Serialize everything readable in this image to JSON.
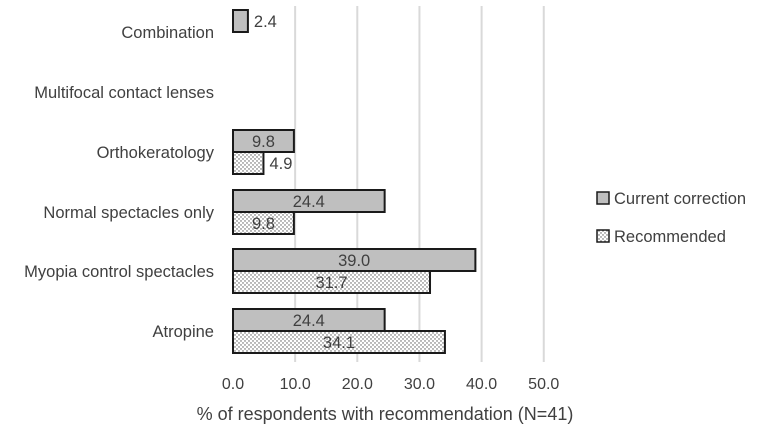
{
  "chart_data": {
    "type": "bar",
    "orientation": "horizontal",
    "categories": [
      "Combination",
      "Multifocal contact lenses",
      "Orthokeratology",
      "Normal spectacles only",
      "Myopia control spectacles",
      "Atropine"
    ],
    "series": [
      {
        "name": "Current correction",
        "values": [
          2.4,
          null,
          9.8,
          24.4,
          39.0,
          24.4
        ],
        "labels": [
          "2.4",
          "",
          "9.8",
          "24.4",
          "39.0",
          "24.4"
        ],
        "fill": "#bfbfbf"
      },
      {
        "name": "Recommended",
        "values": [
          null,
          null,
          4.9,
          9.8,
          31.7,
          34.1
        ],
        "labels": [
          "",
          "",
          "4.9",
          "9.8",
          "31.7",
          "34.1"
        ],
        "fill": "dotted"
      }
    ],
    "xlabel": "% of respondents with recommendation (N=41)",
    "ylabel": "",
    "xlim": [
      0,
      50
    ],
    "ticks": [
      0,
      10,
      20,
      30,
      40,
      50
    ],
    "tick_labels": [
      "0.0",
      "10.0",
      "20.0",
      "30.0",
      "40.0",
      "50.0"
    ],
    "grid": true,
    "legend_position": "right"
  },
  "colors": {
    "current_fill": "#bfbfbf",
    "border": "#1a1a1a",
    "grid": "#d9d9d9",
    "text": "#404040"
  }
}
